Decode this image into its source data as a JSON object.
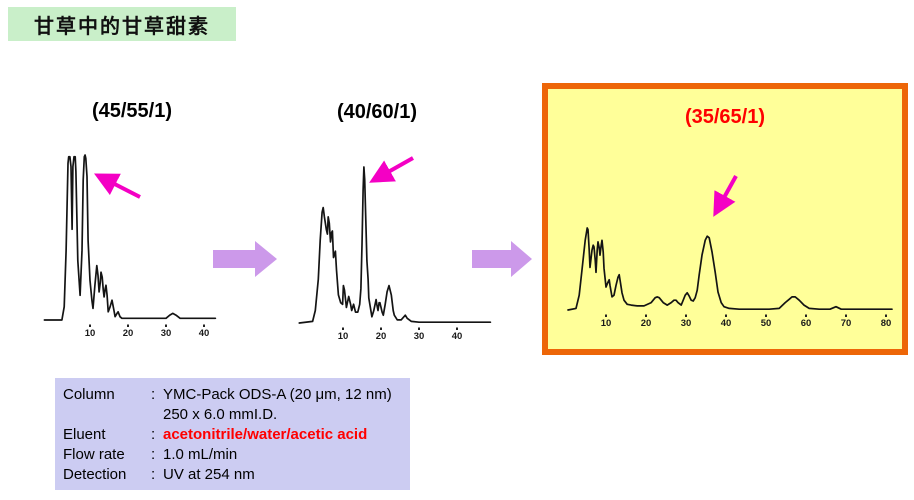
{
  "slide_title": "甘草中的甘草甜素",
  "colors": {
    "title_background": "#c9efc9",
    "highlight_background": "#ffff99",
    "highlight_border": "#ed6608",
    "info_box_background": "#ccccf2",
    "annotation_arrow_magenta": "#f400c4",
    "flow_arrow_purple": "#cc99ea",
    "eluent_text_red": "#ff0000",
    "highlight_label_red": "#ff0000",
    "trace_black": "#141414"
  },
  "info": {
    "rows": [
      {
        "label": "Column",
        "colon": ":",
        "value": "YMC-Pack ODS-A (20 μm, 12 nm)",
        "red": false
      },
      {
        "label": "",
        "colon": "",
        "value": "250 x 6.0 mmI.D.",
        "red": false
      },
      {
        "label": "Eluent",
        "colon": ":",
        "value": "acetonitrile/water/acetic acid",
        "red": true
      },
      {
        "label": "Flow rate",
        "colon": ":",
        "value": "1.0 mL/min",
        "red": false
      },
      {
        "label": "Detection",
        "colon": ":",
        "value": "UV at 254 nm",
        "red": false
      }
    ]
  },
  "chart_data": [
    {
      "type": "line",
      "title": "(45/55/1)",
      "eluent_ratio_acetonitrile_water_acetic_acid": "45/55/1",
      "x_unit": "min",
      "ticks_min": [
        10,
        20,
        30,
        40
      ],
      "y": "relative intensity 0-100 (tallest peaks clipped at 100)",
      "arrow_points_to_min": 8.7,
      "points": [
        [
          -2,
          0
        ],
        [
          2.6,
          0
        ],
        [
          3.2,
          8
        ],
        [
          3.7,
          42
        ],
        [
          4.2,
          95
        ],
        [
          4.4,
          99
        ],
        [
          4.7,
          99
        ],
        [
          5.0,
          93
        ],
        [
          5.3,
          55
        ],
        [
          5.5,
          93
        ],
        [
          5.8,
          99
        ],
        [
          6.1,
          99
        ],
        [
          6.3,
          90
        ],
        [
          6.8,
          36
        ],
        [
          7.4,
          15
        ],
        [
          7.9,
          42
        ],
        [
          8.2,
          85
        ],
        [
          8.5,
          99
        ],
        [
          8.7,
          100
        ],
        [
          8.9,
          98
        ],
        [
          9.2,
          87
        ],
        [
          9.5,
          48
        ],
        [
          10.0,
          24
        ],
        [
          10.5,
          12
        ],
        [
          10.8,
          7
        ],
        [
          11.3,
          21
        ],
        [
          11.8,
          33
        ],
        [
          12.1,
          27
        ],
        [
          12.4,
          17
        ],
        [
          12.7,
          23
        ],
        [
          12.9,
          29
        ],
        [
          13.2,
          26
        ],
        [
          13.5,
          18
        ],
        [
          13.7,
          14
        ],
        [
          14.0,
          19
        ],
        [
          14.2,
          21
        ],
        [
          14.5,
          15
        ],
        [
          14.8,
          5
        ],
        [
          15.3,
          8
        ],
        [
          15.8,
          12
        ],
        [
          16.3,
          6
        ],
        [
          16.6,
          2
        ],
        [
          17.1,
          4
        ],
        [
          17.4,
          5
        ],
        [
          17.9,
          2
        ],
        [
          18.4,
          1
        ],
        [
          20,
          1
        ],
        [
          24,
          1
        ],
        [
          28,
          1
        ],
        [
          30,
          1
        ],
        [
          31,
          3
        ],
        [
          31.8,
          4
        ],
        [
          32.6,
          3
        ],
        [
          33.7,
          1
        ],
        [
          36,
          1
        ],
        [
          40,
          1
        ],
        [
          43,
          1
        ]
      ]
    },
    {
      "type": "line",
      "title": "(40/60/1)",
      "eluent_ratio_acetonitrile_water_acetic_acid": "40/60/1",
      "x_unit": "min",
      "ticks_min": [
        10,
        20,
        30,
        40
      ],
      "y": "relative intensity 0-100",
      "arrow_points_to_min": 15.5,
      "points": [
        [
          -1.5,
          0
        ],
        [
          2.0,
          1
        ],
        [
          2.7,
          8
        ],
        [
          3.5,
          28
        ],
        [
          4.0,
          53
        ],
        [
          4.5,
          71
        ],
        [
          4.8,
          74
        ],
        [
          5.1,
          68
        ],
        [
          5.6,
          60
        ],
        [
          5.9,
          57
        ],
        [
          6.1,
          68
        ],
        [
          6.4,
          64
        ],
        [
          6.7,
          52
        ],
        [
          7.0,
          58
        ],
        [
          7.2,
          59
        ],
        [
          7.5,
          42
        ],
        [
          8.0,
          46
        ],
        [
          8.3,
          34
        ],
        [
          8.8,
          18
        ],
        [
          9.4,
          13
        ],
        [
          9.9,
          12
        ],
        [
          10.1,
          24
        ],
        [
          10.4,
          21
        ],
        [
          10.9,
          10
        ],
        [
          11.5,
          17
        ],
        [
          12.0,
          12
        ],
        [
          12.3,
          8
        ],
        [
          12.8,
          12
        ],
        [
          13.3,
          7
        ],
        [
          13.9,
          7
        ],
        [
          14.4,
          12
        ],
        [
          14.7,
          22
        ],
        [
          15.0,
          50
        ],
        [
          15.3,
          85
        ],
        [
          15.5,
          100
        ],
        [
          15.7,
          92
        ],
        [
          16.0,
          66
        ],
        [
          16.3,
          40
        ],
        [
          16.6,
          28
        ],
        [
          16.8,
          16
        ],
        [
          17.6,
          4
        ],
        [
          18.1,
          8
        ],
        [
          18.7,
          15
        ],
        [
          18.9,
          12
        ],
        [
          19.2,
          8
        ],
        [
          19.5,
          13
        ],
        [
          19.7,
          13
        ],
        [
          20.3,
          7
        ],
        [
          20.6,
          5
        ],
        [
          21.1,
          12
        ],
        [
          21.6,
          20
        ],
        [
          22.1,
          24
        ],
        [
          22.7,
          18
        ],
        [
          23.2,
          8
        ],
        [
          23.5,
          5
        ],
        [
          24.3,
          2
        ],
        [
          25.3,
          2
        ],
        [
          26.4,
          5
        ],
        [
          26.9,
          3
        ],
        [
          28.0,
          1
        ],
        [
          30,
          0.5
        ],
        [
          35,
          0.5
        ],
        [
          40,
          0.5
        ],
        [
          45,
          0.5
        ],
        [
          48.8,
          0.5
        ]
      ]
    },
    {
      "type": "line",
      "title": "(35/65/1)",
      "eluent_ratio_acetonitrile_water_acetic_acid": "35/65/1",
      "x_unit": "min",
      "ticks_min": [
        10,
        20,
        30,
        40,
        50,
        60,
        70,
        80
      ],
      "y": "relative intensity 0-100",
      "arrow_points_to_min": 35.5,
      "highlighted": true,
      "points": [
        [
          0.5,
          0
        ],
        [
          2.5,
          2
        ],
        [
          3.3,
          18
        ],
        [
          4.0,
          49
        ],
        [
          4.8,
          85
        ],
        [
          5.3,
          100
        ],
        [
          5.5,
          98
        ],
        [
          5.8,
          73
        ],
        [
          6.0,
          52
        ],
        [
          6.5,
          73
        ],
        [
          6.8,
          79
        ],
        [
          7.0,
          77
        ],
        [
          7.3,
          61
        ],
        [
          7.5,
          46
        ],
        [
          7.8,
          73
        ],
        [
          8.0,
          83
        ],
        [
          8.3,
          76
        ],
        [
          8.5,
          67
        ],
        [
          8.8,
          79
        ],
        [
          9.0,
          85
        ],
        [
          9.3,
          71
        ],
        [
          9.5,
          51
        ],
        [
          10.0,
          28
        ],
        [
          10.5,
          34
        ],
        [
          10.8,
          37
        ],
        [
          11.0,
          30
        ],
        [
          11.5,
          16
        ],
        [
          12.0,
          18
        ],
        [
          12.5,
          30
        ],
        [
          13.0,
          40
        ],
        [
          13.3,
          43
        ],
        [
          13.5,
          37
        ],
        [
          14.0,
          21
        ],
        [
          14.5,
          12
        ],
        [
          15.3,
          7
        ],
        [
          16.3,
          6
        ],
        [
          17.8,
          5
        ],
        [
          19.5,
          5
        ],
        [
          21.3,
          9
        ],
        [
          22.3,
          15
        ],
        [
          22.8,
          16
        ],
        [
          23.3,
          15
        ],
        [
          24.3,
          9
        ],
        [
          25.3,
          6
        ],
        [
          26.3,
          9
        ],
        [
          27.0,
          12
        ],
        [
          27.5,
          12
        ],
        [
          28.0,
          9
        ],
        [
          28.8,
          6
        ],
        [
          29.3,
          12
        ],
        [
          29.8,
          18
        ],
        [
          30.3,
          21
        ],
        [
          30.8,
          17
        ],
        [
          31.3,
          12
        ],
        [
          31.8,
          11
        ],
        [
          32.3,
          15
        ],
        [
          32.8,
          24
        ],
        [
          33.3,
          43
        ],
        [
          34.0,
          67
        ],
        [
          34.8,
          85
        ],
        [
          35.3,
          90
        ],
        [
          35.8,
          88
        ],
        [
          36.5,
          71
        ],
        [
          37.3,
          46
        ],
        [
          38.0,
          22
        ],
        [
          38.8,
          9
        ],
        [
          39.5,
          4
        ],
        [
          40.8,
          2
        ],
        [
          43.3,
          1
        ],
        [
          47,
          1
        ],
        [
          50.8,
          1
        ],
        [
          53.3,
          2
        ],
        [
          54.8,
          9
        ],
        [
          55.8,
          13
        ],
        [
          56.5,
          16
        ],
        [
          57.3,
          16
        ],
        [
          58.3,
          12
        ],
        [
          59.5,
          6
        ],
        [
          60.8,
          2
        ],
        [
          63.3,
          1
        ],
        [
          66,
          1
        ],
        [
          67.5,
          4
        ],
        [
          68.8,
          1
        ],
        [
          73,
          1
        ],
        [
          81.5,
          1
        ]
      ]
    }
  ]
}
